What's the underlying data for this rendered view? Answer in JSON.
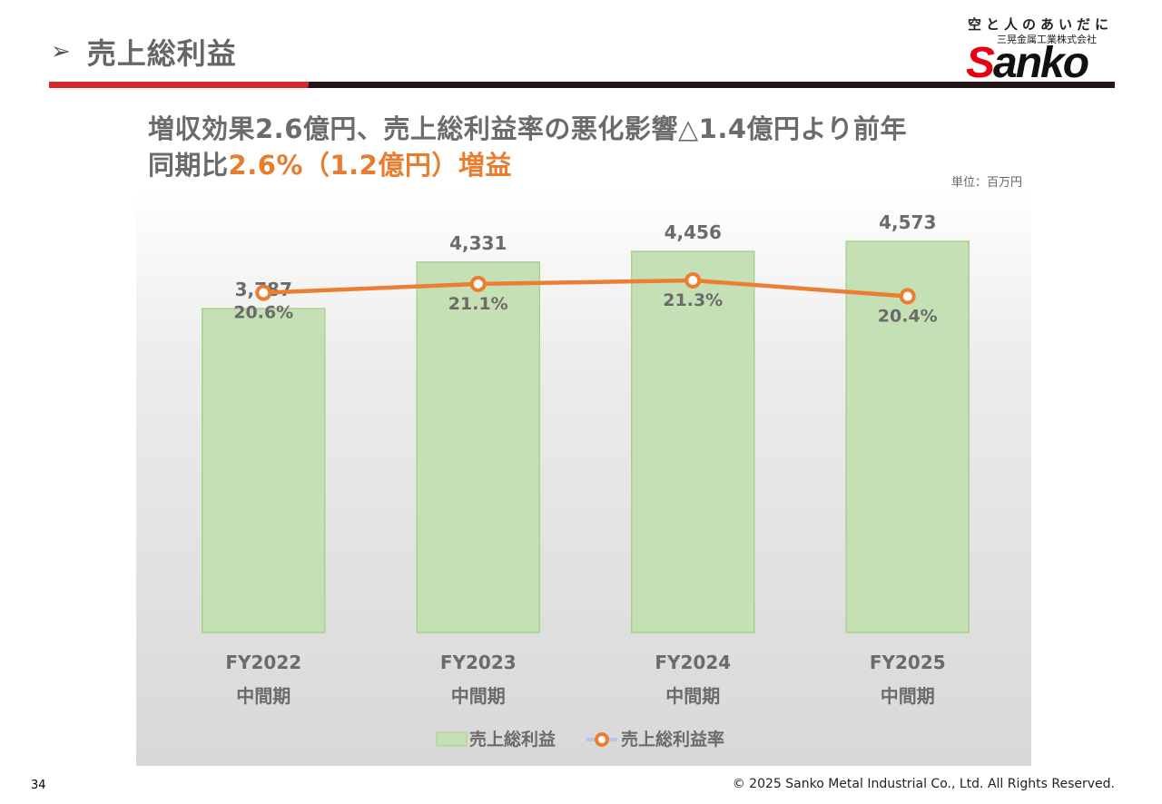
{
  "header": {
    "title_marker": "➢",
    "title": "売上総利益"
  },
  "logo": {
    "tagline": "空と人のあいだに",
    "company": "三晃金属工業株式会社",
    "wordmark_s": "S",
    "wordmark_rest": "anko"
  },
  "headline": {
    "line1": "増収効果2.6億円、売上総利益率の悪化影響△1.4億円より前年",
    "line2_prefix": "同期比",
    "line2_highlight": "2.6%（1.2億円）増益"
  },
  "unit_label": "単位：百万円",
  "chart_data": {
    "type": "bar+line",
    "categories": [
      "FY2022",
      "FY2023",
      "FY2024",
      "FY2025"
    ],
    "category_sublabel": "中間期",
    "series": [
      {
        "name": "売上総利益",
        "type": "bar",
        "values": [
          3787,
          4331,
          4456,
          4573
        ],
        "labels": [
          "3,787",
          "4,331",
          "4,456",
          "4,573"
        ],
        "color": "#c5e0b4",
        "border": "#a9d18e"
      },
      {
        "name": "売上総利益率",
        "type": "line",
        "values": [
          20.6,
          21.1,
          21.3,
          20.4
        ],
        "labels": [
          "20.6%",
          "21.1%",
          "21.3%",
          "20.4%"
        ],
        "color": "#ed7d31"
      }
    ],
    "ylim_bar": [
      0,
      5000
    ],
    "ylim_line": [
      0,
      25
    ],
    "legend": "bottom-center",
    "grid": false
  },
  "footer": {
    "page": "34",
    "copyright": "© 2025 Sanko Metal Industrial Co., Ltd. All Rights Reserved."
  }
}
